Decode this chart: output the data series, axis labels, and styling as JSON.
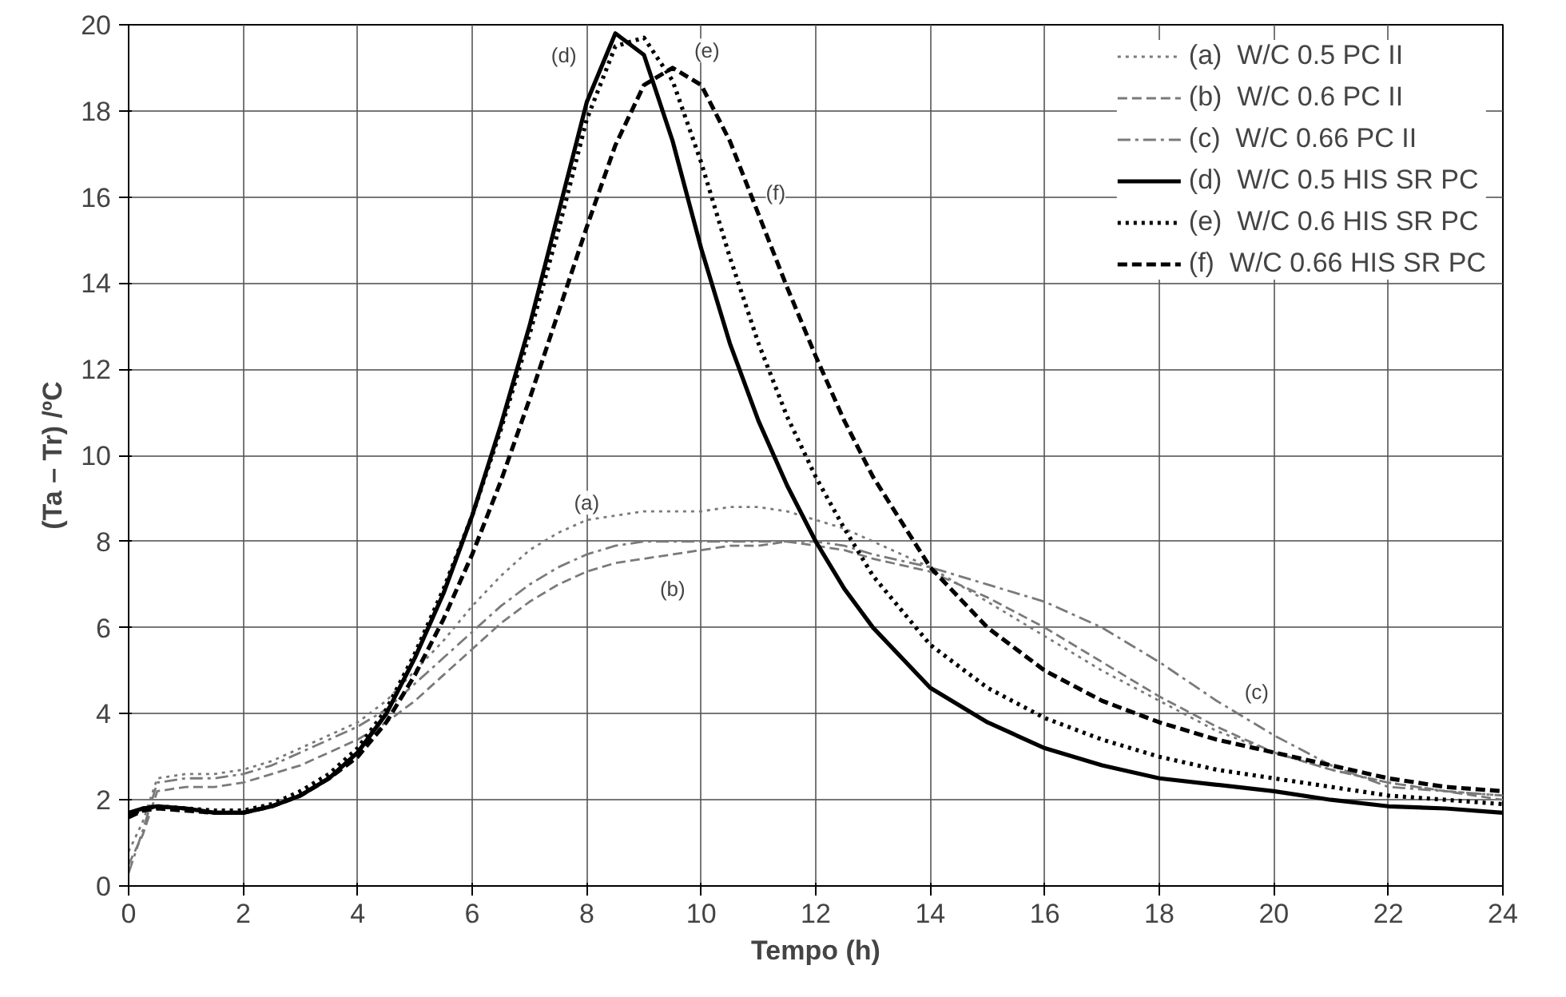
{
  "chart_data": {
    "type": "line",
    "xlabel": "Tempo (h)",
    "ylabel": "(Ta – Tr) /ºC",
    "x": [
      0,
      0.25,
      0.5,
      1,
      1.5,
      2,
      2.5,
      3,
      3.5,
      4,
      4.5,
      5,
      5.5,
      6,
      6.5,
      7,
      7.5,
      8,
      8.5,
      9,
      9.5,
      10,
      10.5,
      11,
      11.5,
      12,
      12.5,
      13,
      14,
      15,
      16,
      17,
      18,
      19,
      20,
      21,
      22,
      23,
      24
    ],
    "series": [
      {
        "name": "(a)  W/C 0.5 PC II",
        "color": "#7a7a7a",
        "line_style": "dotted",
        "values": [
          0.8,
          1.5,
          2.5,
          2.6,
          2.6,
          2.7,
          2.9,
          3.2,
          3.5,
          3.8,
          4.3,
          5.0,
          5.7,
          6.5,
          7.2,
          7.8,
          8.2,
          8.5,
          8.6,
          8.7,
          8.7,
          8.7,
          8.8,
          8.8,
          8.7,
          8.5,
          8.3,
          8.0,
          7.4,
          6.6,
          5.8,
          5.0,
          4.3,
          3.6,
          3.1,
          2.7,
          2.4,
          2.2,
          2.1
        ]
      },
      {
        "name": "(b)  W/C 0.6 PC II",
        "color": "#7a7a7a",
        "line_style": "dashed",
        "values": [
          0.5,
          1.2,
          2.2,
          2.3,
          2.3,
          2.4,
          2.6,
          2.8,
          3.1,
          3.4,
          3.8,
          4.3,
          4.9,
          5.5,
          6.1,
          6.6,
          7.0,
          7.3,
          7.5,
          7.6,
          7.7,
          7.8,
          7.9,
          7.9,
          8.0,
          7.9,
          7.8,
          7.6,
          7.3,
          6.7,
          6.0,
          5.2,
          4.4,
          3.7,
          3.1,
          2.7,
          2.4,
          2.2,
          2.0
        ]
      },
      {
        "name": "(c)  W/C 0.66 PC II",
        "color": "#7a7a7a",
        "line_style": "dashdot",
        "values": [
          0.3,
          1.3,
          2.4,
          2.5,
          2.5,
          2.6,
          2.8,
          3.1,
          3.4,
          3.7,
          4.1,
          4.7,
          5.3,
          5.9,
          6.5,
          7.0,
          7.4,
          7.7,
          7.9,
          8.0,
          8.0,
          8.0,
          8.0,
          8.0,
          8.0,
          8.0,
          7.9,
          7.7,
          7.4,
          7.0,
          6.6,
          6.0,
          5.2,
          4.3,
          3.5,
          2.8,
          2.3,
          2.2,
          2.1
        ]
      },
      {
        "name": "(d)  W/C 0.5 HIS SR PC",
        "color": "#000000",
        "line_style": "solid",
        "values": [
          1.7,
          1.8,
          1.85,
          1.8,
          1.7,
          1.7,
          1.85,
          2.1,
          2.5,
          3.1,
          4.0,
          5.3,
          6.8,
          8.6,
          10.7,
          13.0,
          15.6,
          18.2,
          19.8,
          19.3,
          17.3,
          14.8,
          12.6,
          10.8,
          9.3,
          8.0,
          6.9,
          6.0,
          4.6,
          3.8,
          3.2,
          2.8,
          2.5,
          2.35,
          2.2,
          2.0,
          1.85,
          1.8,
          1.7
        ]
      },
      {
        "name": "(e)  W/C 0.6 HIS SR PC",
        "color": "#000000",
        "line_style": "dotted",
        "values": [
          1.6,
          1.8,
          1.85,
          1.8,
          1.75,
          1.75,
          1.9,
          2.2,
          2.6,
          3.2,
          4.1,
          5.4,
          6.9,
          8.6,
          10.6,
          12.8,
          15.2,
          17.8,
          19.5,
          19.7,
          18.7,
          16.8,
          14.6,
          12.6,
          10.9,
          9.5,
          8.3,
          7.2,
          5.6,
          4.6,
          3.9,
          3.4,
          3.0,
          2.7,
          2.5,
          2.3,
          2.1,
          2.0,
          1.9
        ]
      },
      {
        "name": "(f)  W/C 0.66 HIS SR PC",
        "color": "#000000",
        "line_style": "dashed",
        "values": [
          1.6,
          1.75,
          1.8,
          1.75,
          1.7,
          1.7,
          1.85,
          2.1,
          2.5,
          3.0,
          3.8,
          4.9,
          6.2,
          7.7,
          9.4,
          11.3,
          13.3,
          15.3,
          17.2,
          18.6,
          19.0,
          18.6,
          17.3,
          15.6,
          13.9,
          12.3,
          10.8,
          9.5,
          7.4,
          6.0,
          5.0,
          4.3,
          3.8,
          3.4,
          3.1,
          2.8,
          2.5,
          2.3,
          2.2
        ]
      }
    ],
    "annotations": [
      {
        "text": "(a)",
        "x": 8,
        "y": 8.9
      },
      {
        "text": "(b)",
        "x": 9.5,
        "y": 6.9
      },
      {
        "text": "(c)",
        "x": 19.7,
        "y": 4.5
      },
      {
        "text": "(d)",
        "x": 7.6,
        "y": 19.3
      },
      {
        "text": "(e)",
        "x": 10.1,
        "y": 19.4
      },
      {
        "text": "(f)",
        "x": 11.3,
        "y": 16.1
      }
    ],
    "xlim": [
      0,
      24
    ],
    "xticks": [
      0,
      2,
      4,
      6,
      8,
      10,
      12,
      14,
      16,
      18,
      20,
      22,
      24
    ],
    "ylim": [
      0,
      20
    ],
    "yticks": [
      0,
      2,
      4,
      6,
      8,
      10,
      12,
      14,
      16,
      18,
      20
    ],
    "grid": true,
    "legend": "top right"
  }
}
